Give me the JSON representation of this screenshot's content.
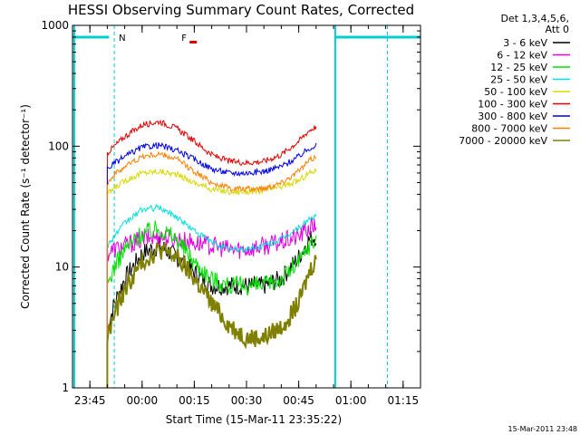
{
  "chart_data": {
    "type": "line",
    "title": "HESSI Observing Summary Count Rates, Corrected",
    "xlabel": "Start Time (15-Mar-11 23:35:22)",
    "ylabel": "Corrected Count Rate (s⁻¹ detector⁻¹)",
    "y_scale": "log",
    "ylim": [
      1,
      1000
    ],
    "y_ticks": [
      {
        "value": 1,
        "label": "1"
      },
      {
        "value": 10,
        "label": "10"
      },
      {
        "value": 100,
        "label": "100"
      },
      {
        "value": 1000,
        "label": "1000"
      }
    ],
    "x_range_minutes": [
      -20,
      80
    ],
    "x_ticks": [
      {
        "minute": -15,
        "label": "23:45"
      },
      {
        "minute": 0,
        "label": "00:00"
      },
      {
        "minute": 15,
        "label": "00:15"
      },
      {
        "minute": 30,
        "label": "00:30"
      },
      {
        "minute": 45,
        "label": "00:45"
      },
      {
        "minute": 60,
        "label": "01:00"
      },
      {
        "minute": 75,
        "label": "01:15"
      }
    ],
    "legend_header": [
      "Det 1,3,4,5,6,",
      "Att 0"
    ],
    "legend_position": "outside-right",
    "series": [
      {
        "name": "3 - 6 keV",
        "color": "#000000",
        "x": [
          -10,
          -8,
          -5,
          0,
          5,
          10,
          15,
          20,
          25,
          30,
          35,
          40,
          45,
          48,
          50
        ],
        "y": [
          3,
          5,
          8,
          13,
          15,
          12,
          9,
          7,
          7,
          7,
          7,
          8,
          12,
          17,
          18
        ]
      },
      {
        "name": "6 - 12 keV",
        "color": "#e000e0",
        "x": [
          -10,
          -8,
          -5,
          0,
          5,
          10,
          15,
          20,
          25,
          30,
          35,
          40,
          45,
          48,
          50
        ],
        "y": [
          13,
          14,
          15,
          17,
          18,
          17,
          16,
          15,
          14,
          14,
          15,
          16,
          18,
          21,
          22
        ]
      },
      {
        "name": "12 - 25 keV",
        "color": "#00e000",
        "x": [
          -10,
          -8,
          -5,
          0,
          5,
          10,
          15,
          20,
          25,
          30,
          35,
          40,
          45,
          48,
          50
        ],
        "y": [
          7,
          10,
          14,
          19,
          21,
          17,
          11,
          8,
          7,
          7,
          7,
          8,
          11,
          15,
          17
        ]
      },
      {
        "name": "25 - 50 keV",
        "color": "#00e0e0",
        "x": [
          -10,
          -8,
          -5,
          0,
          5,
          10,
          15,
          20,
          25,
          30,
          35,
          40,
          45,
          48,
          50
        ],
        "y": [
          15,
          18,
          23,
          30,
          31,
          26,
          20,
          16,
          14,
          14,
          15,
          17,
          21,
          25,
          26
        ]
      },
      {
        "name": "50 - 100 keV",
        "color": "#d8d800",
        "x": [
          -10,
          -8,
          -5,
          0,
          5,
          10,
          15,
          20,
          25,
          30,
          35,
          40,
          45,
          48,
          50
        ],
        "y": [
          40,
          45,
          52,
          60,
          62,
          58,
          50,
          44,
          42,
          42,
          43,
          46,
          52,
          60,
          63
        ]
      },
      {
        "name": "100 - 300 keV",
        "color": "#e00000",
        "x": [
          -10,
          -8,
          -5,
          0,
          5,
          10,
          15,
          20,
          25,
          30,
          35,
          40,
          45,
          48,
          50
        ],
        "y": [
          88,
          100,
          120,
          150,
          160,
          140,
          110,
          85,
          75,
          73,
          75,
          85,
          110,
          135,
          145
        ]
      },
      {
        "name": "300 - 800 keV",
        "color": "#0000e0",
        "x": [
          -10,
          -8,
          -5,
          0,
          5,
          10,
          15,
          20,
          25,
          30,
          35,
          40,
          45,
          48,
          50
        ],
        "y": [
          65,
          72,
          82,
          98,
          102,
          92,
          78,
          65,
          60,
          60,
          62,
          68,
          82,
          96,
          102
        ]
      },
      {
        "name": "800 - 7000 keV",
        "color": "#ff8000",
        "x": [
          -10,
          -8,
          -5,
          0,
          5,
          10,
          15,
          20,
          25,
          30,
          35,
          40,
          45,
          48,
          50
        ],
        "y": [
          50,
          58,
          68,
          82,
          86,
          78,
          62,
          50,
          45,
          44,
          45,
          50,
          62,
          76,
          82
        ]
      },
      {
        "name": "7000 - 20000 keV",
        "color": "#808000",
        "x": [
          -10,
          -8,
          -5,
          0,
          5,
          10,
          15,
          20,
          25,
          30,
          35,
          40,
          45,
          48,
          50
        ],
        "y": [
          2.6,
          4,
          6.5,
          11,
          14,
          12,
          8,
          5,
          3.3,
          2.6,
          2.6,
          3.2,
          5,
          9,
          12
        ]
      }
    ],
    "annotations": [
      {
        "text": "N",
        "color": "#00d0d0",
        "minute": -8
      },
      {
        "text": "F",
        "color": "#e00000",
        "minute": 10
      }
    ],
    "grid": false
  },
  "timestamp": "15-Mar-2011 23:48"
}
